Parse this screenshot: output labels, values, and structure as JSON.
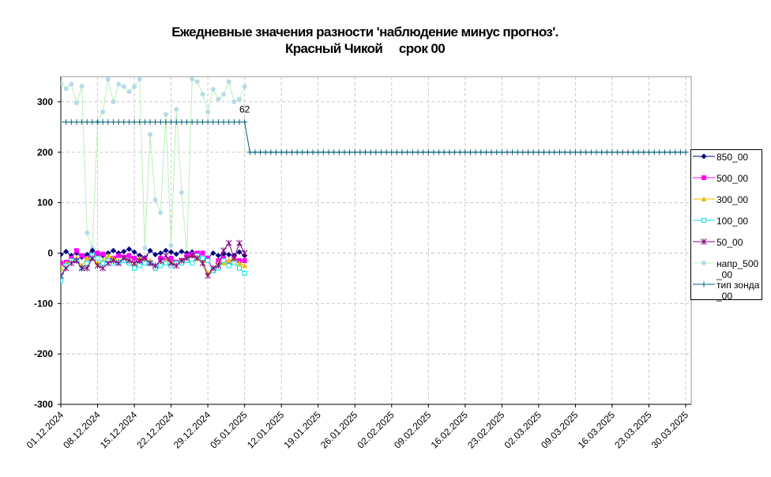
{
  "chart_data": {
    "type": "line",
    "title": "Ежедневные значения разности 'наблюдение минус прогноз'.",
    "subtitle": "Красный Чикой     срок 00",
    "x": [
      "01.12.2024",
      "02.12.2024",
      "03.12.2024",
      "04.12.2024",
      "05.12.2024",
      "06.12.2024",
      "07.12.2024",
      "08.12.2024",
      "09.12.2024",
      "10.12.2024",
      "11.12.2024",
      "12.12.2024",
      "13.12.2024",
      "14.12.2024",
      "15.12.2024",
      "16.12.2024",
      "17.12.2024",
      "18.12.2024",
      "19.12.2024",
      "20.12.2024",
      "21.12.2024",
      "22.12.2024",
      "23.12.2024",
      "24.12.2024",
      "25.12.2024",
      "26.12.2024",
      "27.12.2024",
      "28.12.2024",
      "29.12.2024",
      "30.12.2024",
      "31.12.2024",
      "01.01.2025",
      "02.01.2025",
      "03.01.2025",
      "04.01.2025",
      "05.01.2025",
      "06.01.2025",
      "07.01.2025",
      "08.01.2025",
      "09.01.2025",
      "10.01.2025",
      "11.01.2025",
      "12.01.2025",
      "13.01.2025",
      "14.01.2025",
      "15.01.2025",
      "16.01.2025",
      "17.01.2025",
      "18.01.2025",
      "19.01.2025",
      "20.01.2025",
      "21.01.2025",
      "22.01.2025",
      "23.01.2025",
      "24.01.2025",
      "25.01.2025",
      "26.01.2025",
      "27.01.2025",
      "28.01.2025",
      "29.01.2025",
      "30.01.2025",
      "31.01.2025",
      "01.02.2025",
      "02.02.2025",
      "03.02.2025",
      "04.02.2025",
      "05.02.2025",
      "06.02.2025",
      "07.02.2025",
      "08.02.2025",
      "09.02.2025",
      "10.02.2025",
      "11.02.2025",
      "12.02.2025",
      "13.02.2025",
      "14.02.2025",
      "15.02.2025",
      "16.02.2025",
      "17.02.2025",
      "18.02.2025",
      "19.02.2025",
      "20.02.2025",
      "21.02.2025",
      "22.02.2025",
      "23.02.2025",
      "24.02.2025",
      "25.02.2025",
      "26.02.2025",
      "27.02.2025",
      "28.02.2025",
      "01.03.2025",
      "02.03.2025",
      "03.03.2025",
      "04.03.2025",
      "05.03.2025",
      "06.03.2025",
      "07.03.2025",
      "08.03.2025",
      "09.03.2025",
      "10.03.2025",
      "11.03.2025",
      "12.03.2025",
      "13.03.2025",
      "14.03.2025",
      "15.03.2025",
      "16.03.2025",
      "17.03.2025",
      "18.03.2025",
      "19.03.2025",
      "20.03.2025",
      "21.03.2025",
      "22.03.2025",
      "23.03.2025",
      "24.03.2025",
      "25.03.2025",
      "26.03.2025",
      "27.03.2025",
      "28.03.2025",
      "29.03.2025",
      "30.03.2025"
    ],
    "ylim": [
      -300,
      350
    ],
    "yticks": [
      -300,
      -200,
      -100,
      0,
      100,
      200,
      300
    ],
    "grid": true,
    "legend": "right",
    "annotations": [
      {
        "text": "62",
        "x": "05.01.2025"
      }
    ],
    "series": [
      {
        "name": "850_00",
        "color": "#000080",
        "marker": "diamond",
        "values": [
          -3,
          3,
          -5,
          0,
          -8,
          -3,
          5,
          -2,
          -5,
          0,
          5,
          0,
          3,
          8,
          2,
          -5,
          -10,
          5,
          -3,
          0,
          5,
          2,
          -2,
          3,
          0,
          2,
          -3,
          -15,
          -10,
          0,
          -5,
          -2,
          -3,
          -5,
          2,
          -5,
          null,
          null,
          null,
          null,
          null,
          null,
          null,
          null,
          null,
          null,
          null,
          null,
          null,
          null,
          null,
          null,
          null,
          null,
          null,
          null,
          null,
          null,
          null,
          null,
          null,
          null,
          null,
          null,
          null,
          null,
          null,
          null,
          null,
          null,
          null,
          null,
          null,
          null,
          null,
          null,
          null,
          null,
          null,
          null,
          null,
          null,
          null,
          null,
          null,
          null,
          null,
          null,
          null,
          null,
          null,
          null,
          null,
          null,
          null,
          null,
          null,
          null,
          null,
          null,
          null,
          null,
          null,
          null,
          null,
          null,
          null,
          null,
          null,
          null,
          null,
          null,
          null,
          null,
          null,
          null,
          null,
          null,
          null,
          null
        ]
      },
      {
        "name": "500_00",
        "color": "#ff00ff",
        "marker": "square",
        "values": [
          -20,
          -18,
          -10,
          5,
          -5,
          -10,
          -5,
          0,
          -2,
          -15,
          -10,
          -5,
          -8,
          -5,
          -10,
          -15,
          -12,
          -20,
          -30,
          -10,
          -15,
          -10,
          -18,
          -15,
          -5,
          -2,
          0,
          0,
          -10,
          -35,
          -15,
          -10,
          -20,
          -10,
          -15,
          -15,
          null,
          null,
          null,
          null,
          null,
          null,
          null,
          null,
          null,
          null,
          null,
          null,
          null,
          null,
          null,
          null,
          null,
          null,
          null,
          null,
          null,
          null,
          null,
          null,
          null,
          null,
          null,
          null,
          null,
          null,
          null,
          null,
          null,
          null,
          null,
          null,
          null,
          null,
          null,
          null,
          null,
          null,
          null,
          null,
          null,
          null,
          null,
          null,
          null,
          null,
          null,
          null,
          null,
          null,
          null,
          null,
          null,
          null,
          null,
          null,
          null,
          null,
          null,
          null,
          null,
          null,
          null,
          null,
          null,
          null,
          null,
          null,
          null,
          null,
          null,
          null,
          null,
          null,
          null,
          null,
          null,
          null,
          null,
          null
        ]
      },
      {
        "name": "300_00",
        "color": "#e6c000",
        "marker": "triangle",
        "values": [
          -30,
          -20,
          -15,
          -10,
          -25,
          -10,
          -10,
          -20,
          -15,
          -5,
          -10,
          -15,
          -10,
          -15,
          -20,
          -10,
          -15,
          -15,
          -30,
          -20,
          -15,
          -18,
          -20,
          -15,
          -10,
          -5,
          -10,
          -15,
          -40,
          -30,
          -20,
          -20,
          -15,
          -10,
          -20,
          -25,
          null,
          null,
          null,
          null,
          null,
          null,
          null,
          null,
          null,
          null,
          null,
          null,
          null,
          null,
          null,
          null,
          null,
          null,
          null,
          null,
          null,
          null,
          null,
          null,
          null,
          null,
          null,
          null,
          null,
          null,
          null,
          null,
          null,
          null,
          null,
          null,
          null,
          null,
          null,
          null,
          null,
          null,
          null,
          null,
          null,
          null,
          null,
          null,
          null,
          null,
          null,
          null,
          null,
          null,
          null,
          null,
          null,
          null,
          null,
          null,
          null,
          null,
          null,
          null,
          null,
          null,
          null,
          null,
          null,
          null,
          null,
          null,
          null,
          null,
          null,
          null,
          null,
          null,
          null,
          null,
          null,
          null,
          null,
          null
        ]
      },
      {
        "name": "100_00",
        "color": "#00e5e5",
        "marker": "hollow-square",
        "values": [
          -55,
          -25,
          -15,
          -15,
          -30,
          -20,
          -5,
          -10,
          -20,
          -15,
          -20,
          -18,
          -15,
          -20,
          -30,
          -25,
          -20,
          -20,
          -30,
          -25,
          -20,
          -25,
          -20,
          -20,
          -15,
          -20,
          -5,
          -10,
          -15,
          -35,
          -30,
          -15,
          -25,
          -20,
          -30,
          -40,
          null,
          null,
          null,
          null,
          null,
          null,
          null,
          null,
          null,
          null,
          null,
          null,
          null,
          null,
          null,
          null,
          null,
          null,
          null,
          null,
          null,
          null,
          null,
          null,
          null,
          null,
          null,
          null,
          null,
          null,
          null,
          null,
          null,
          null,
          null,
          null,
          null,
          null,
          null,
          null,
          null,
          null,
          null,
          null,
          null,
          null,
          null,
          null,
          null,
          null,
          null,
          null,
          null,
          null,
          null,
          null,
          null,
          null,
          null,
          null,
          null,
          null,
          null,
          null,
          null,
          null,
          null,
          null,
          null,
          null,
          null,
          null,
          null,
          null,
          null,
          null,
          null,
          null,
          null,
          null,
          null,
          null,
          null,
          null
        ]
      },
      {
        "name": "50_00",
        "color": "#800080",
        "marker": "star",
        "values": [
          -45,
          -30,
          -20,
          -15,
          -30,
          -30,
          -10,
          -25,
          -30,
          -20,
          -15,
          -20,
          -10,
          -15,
          -20,
          -15,
          -10,
          -20,
          -25,
          -15,
          -5,
          -20,
          -25,
          -15,
          -10,
          -5,
          -10,
          -20,
          -45,
          -30,
          -25,
          5,
          20,
          -10,
          20,
          0,
          null,
          null,
          null,
          null,
          null,
          null,
          null,
          null,
          null,
          null,
          null,
          null,
          null,
          null,
          null,
          null,
          null,
          null,
          null,
          null,
          null,
          null,
          null,
          null,
          null,
          null,
          null,
          null,
          null,
          null,
          null,
          null,
          null,
          null,
          null,
          null,
          null,
          null,
          null,
          null,
          null,
          null,
          null,
          null,
          null,
          null,
          null,
          null,
          null,
          null,
          null,
          null,
          null,
          null,
          null,
          null,
          null,
          null,
          null,
          null,
          null,
          null,
          null,
          null,
          null,
          null,
          null,
          null,
          null,
          null,
          null,
          null,
          null,
          null,
          null,
          null,
          null,
          null,
          null,
          null,
          null,
          null,
          null,
          null
        ]
      },
      {
        "name": "напр_500_00",
        "color": "#b4dce8",
        "line_color": "#b8f0b8",
        "marker": "circle",
        "values": [
          337,
          326,
          335,
          298,
          331,
          40,
          10,
          260,
          280,
          345,
          300,
          335,
          330,
          320,
          330,
          345,
          10,
          235,
          105,
          80,
          275,
          15,
          285,
          120,
          0,
          345,
          340,
          315,
          280,
          325,
          305,
          315,
          340,
          300,
          305,
          330,
          null,
          null,
          null,
          null,
          null,
          null,
          null,
          null,
          null,
          null,
          null,
          null,
          null,
          null,
          null,
          null,
          null,
          null,
          null,
          null,
          null,
          null,
          null,
          null,
          null,
          null,
          null,
          null,
          null,
          null,
          null,
          null,
          null,
          null,
          null,
          null,
          null,
          null,
          null,
          null,
          null,
          null,
          null,
          null,
          null,
          null,
          null,
          null,
          null,
          null,
          null,
          null,
          null,
          null,
          null,
          null,
          null,
          null,
          null,
          null,
          null,
          null,
          null,
          null,
          null,
          null,
          null,
          null,
          null,
          null,
          null,
          null,
          null,
          null,
          null,
          null,
          null,
          null,
          null,
          null,
          null,
          null,
          null,
          null
        ]
      },
      {
        "name": "тип зонда_00",
        "color": "#00607a",
        "marker": "plus",
        "values": [
          260,
          260,
          260,
          260,
          260,
          260,
          260,
          260,
          260,
          260,
          260,
          260,
          260,
          260,
          260,
          260,
          260,
          260,
          260,
          260,
          260,
          260,
          260,
          260,
          260,
          260,
          260,
          260,
          260,
          260,
          260,
          260,
          260,
          260,
          260,
          260,
          200,
          200,
          200,
          200,
          200,
          200,
          200,
          200,
          200,
          200,
          200,
          200,
          200,
          200,
          200,
          200,
          200,
          200,
          200,
          200,
          200,
          200,
          200,
          200,
          200,
          200,
          200,
          200,
          200,
          200,
          200,
          200,
          200,
          200,
          200,
          200,
          200,
          200,
          200,
          200,
          200,
          200,
          200,
          200,
          200,
          200,
          200,
          200,
          200,
          200,
          200,
          200,
          200,
          200,
          200,
          200,
          200,
          200,
          200,
          200,
          200,
          200,
          200,
          200,
          200,
          200,
          200,
          200,
          200,
          200,
          200,
          200,
          200,
          200,
          200,
          200,
          200,
          200,
          200,
          200,
          200,
          200,
          200,
          200
        ]
      }
    ]
  }
}
